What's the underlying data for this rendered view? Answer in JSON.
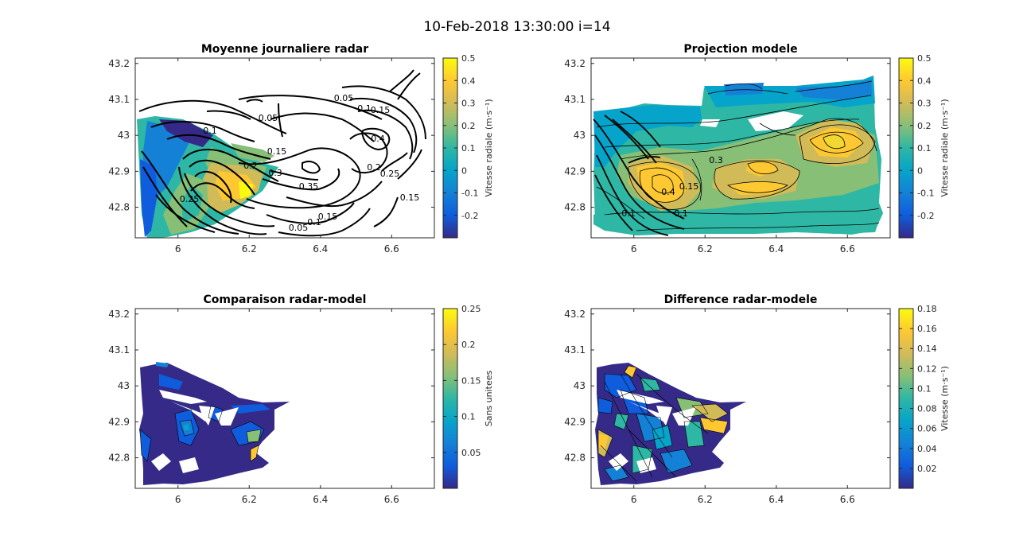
{
  "figure": {
    "suptitle": "10-Feb-2018 13:30:00 i=14"
  },
  "colors": {
    "parula": [
      "#352a87",
      "#0f5cdd",
      "#1481d6",
      "#06a4ca",
      "#2eb7a4",
      "#87bf77",
      "#d1bb59",
      "#fec832",
      "#f9fb0e"
    ],
    "axis": "#262626",
    "contour": "#000000"
  },
  "chart_data": [
    {
      "id": "p1",
      "type": "contour",
      "title": "Moyenne journaliere radar",
      "xlim": [
        5.88,
        6.72
      ],
      "ylim": [
        42.715,
        43.215
      ],
      "xticks": [
        "6",
        "6.2",
        "6.4",
        "6.6"
      ],
      "yticks": [
        "42.8",
        "42.9",
        "43",
        "43.1",
        "43.2"
      ],
      "colorbar": {
        "ticks": [
          "-0.2",
          "-0.1",
          "0",
          "0.1",
          "0.2",
          "0.3",
          "0.4",
          "0.5"
        ],
        "label": "Vitesse radiale (m·s⁻¹)",
        "range": [
          -0.3,
          0.5
        ]
      },
      "contour_labels": [
        "0.05",
        "0.1",
        "0.15",
        "0.2",
        "0.25",
        "0.3",
        "0.35",
        "0.4"
      ]
    },
    {
      "id": "p2",
      "type": "contour",
      "title": "Projection modele",
      "xlim": [
        5.88,
        6.72
      ],
      "ylim": [
        42.715,
        43.215
      ],
      "xticks": [
        "6",
        "6.2",
        "6.4",
        "6.6"
      ],
      "yticks": [
        "42.8",
        "42.9",
        "43",
        "43.1",
        "43.2"
      ],
      "colorbar": {
        "ticks": [
          "-0.2",
          "-0.1",
          "0",
          "0.1",
          "0.2",
          "0.3",
          "0.4",
          "0.5"
        ],
        "label": "Vitesse radiale (m·s⁻¹)",
        "range": [
          -0.3,
          0.5
        ]
      },
      "contour_labels": [
        "0.3",
        "0.4",
        "0.15",
        "0.1"
      ]
    },
    {
      "id": "p3",
      "type": "contour",
      "title": "Comparaison radar-model",
      "xlim": [
        5.88,
        6.72
      ],
      "ylim": [
        42.715,
        43.215
      ],
      "xticks": [
        "6",
        "6.2",
        "6.4",
        "6.6"
      ],
      "yticks": [
        "42.8",
        "42.9",
        "43",
        "43.1",
        "43.2"
      ],
      "colorbar": {
        "ticks": [
          "0.05",
          "0.1",
          "0.15",
          "0.2",
          "0.25"
        ],
        "label": "Sans unitees",
        "range": [
          0.0,
          0.25
        ]
      }
    },
    {
      "id": "p4",
      "type": "contour",
      "title": "Difference radar-modele",
      "xlim": [
        5.88,
        6.72
      ],
      "ylim": [
        42.715,
        43.215
      ],
      "xticks": [
        "6",
        "6.2",
        "6.4",
        "6.6"
      ],
      "yticks": [
        "42.8",
        "42.9",
        "43",
        "43.1",
        "43.2"
      ],
      "colorbar": {
        "ticks": [
          "0.02",
          "0.04",
          "0.06",
          "0.08",
          "0.1",
          "0.12",
          "0.14",
          "0.16",
          "0.18"
        ],
        "label": "Vitesse (m·s⁻¹)",
        "range": [
          0.0,
          0.18
        ]
      }
    }
  ]
}
